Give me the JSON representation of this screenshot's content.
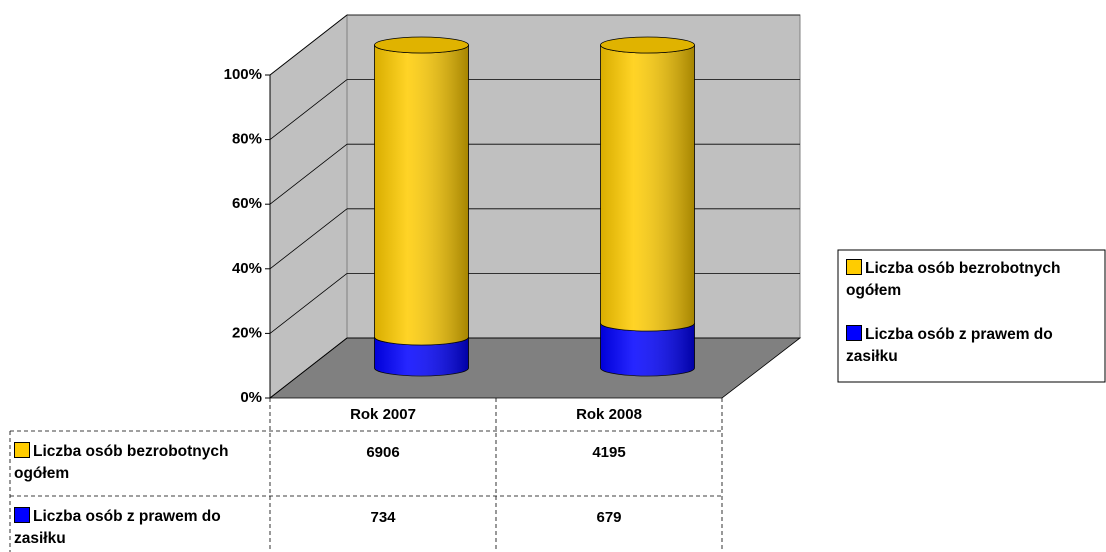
{
  "chart_data": {
    "type": "stacked_percent_cylinder",
    "categories": [
      "Rok 2007",
      "Rok 2008"
    ],
    "series": [
      {
        "name": "Liczba osób bezrobotnych ogółem",
        "color": "#ffcc00",
        "values": [
          6906,
          4195
        ]
      },
      {
        "name": "Liczba osób z prawem do zasiłku",
        "color": "#0000ff",
        "values": [
          734,
          679
        ]
      }
    ],
    "ylim": [
      0,
      100
    ],
    "yticks": [
      {
        "value": 0,
        "label": "0%"
      },
      {
        "value": 20,
        "label": "20%"
      },
      {
        "value": 40,
        "label": "40%"
      },
      {
        "value": 60,
        "label": "60%"
      },
      {
        "value": 80,
        "label": "80%"
      },
      {
        "value": 100,
        "label": "100%"
      }
    ],
    "grid": true,
    "legend": "right",
    "data_table": true
  }
}
